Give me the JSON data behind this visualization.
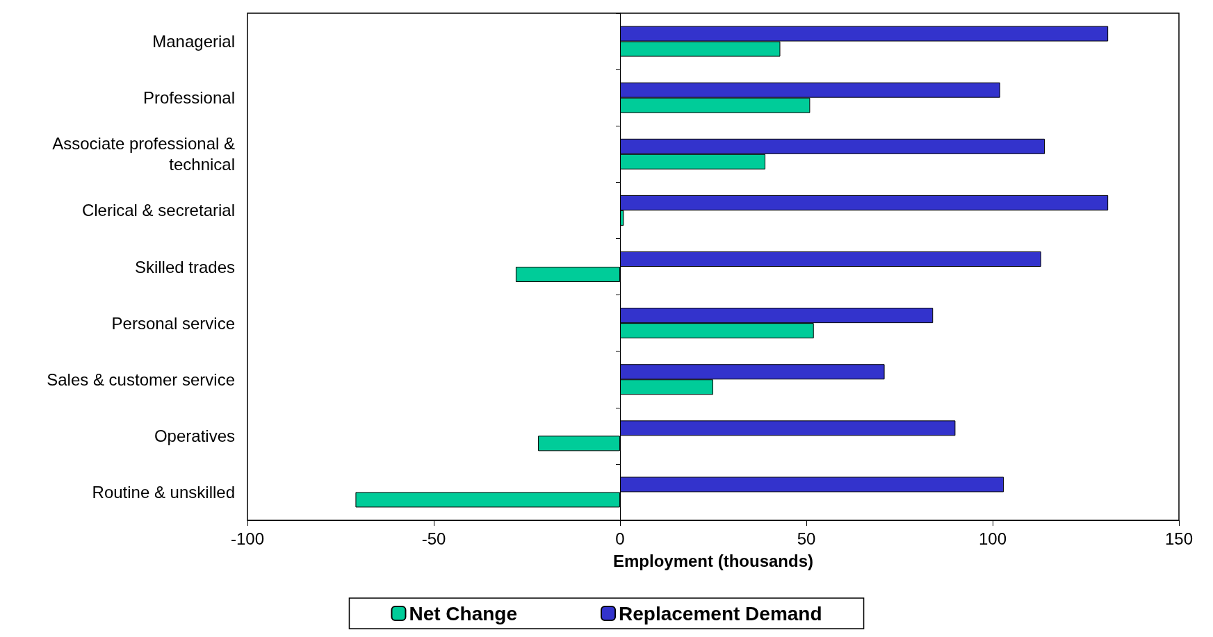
{
  "chart_data": {
    "type": "bar",
    "orientation": "horizontal",
    "xlabel": "Employment (thousands)",
    "categories": [
      "Managerial",
      "Professional",
      "Associate professional &\ntechnical",
      "Clerical & secretarial",
      "Skilled trades",
      "Personal service",
      "Sales & customer service",
      "Operatives",
      "Routine & unskilled"
    ],
    "series": [
      {
        "name": "Net Change",
        "color": "#00cc99",
        "values": [
          43,
          51,
          39,
          1,
          -28,
          52,
          25,
          -22,
          -71
        ]
      },
      {
        "name": "Replacement Demand",
        "color": "#3333cc",
        "values": [
          131,
          102,
          114,
          131,
          113,
          84,
          71,
          90,
          103
        ]
      }
    ],
    "xlim": [
      -100,
      150
    ],
    "xticks": [
      -100,
      -50,
      0,
      50,
      100,
      150
    ],
    "legend": "bottom"
  }
}
